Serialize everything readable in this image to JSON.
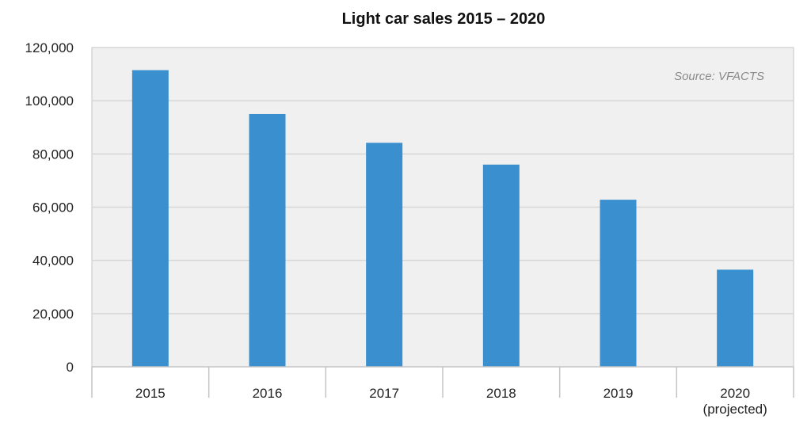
{
  "chart_data": {
    "type": "bar",
    "title": "Light car sales 2015 – 2020",
    "source": "Source: VFACTS",
    "categories": [
      {
        "label": "2015",
        "sub": ""
      },
      {
        "label": "2016",
        "sub": ""
      },
      {
        "label": "2017",
        "sub": ""
      },
      {
        "label": "2018",
        "sub": ""
      },
      {
        "label": "2019",
        "sub": ""
      },
      {
        "label": "2020",
        "sub": "(projected)"
      }
    ],
    "values": [
      111500,
      95000,
      84200,
      76000,
      62800,
      36500
    ],
    "ylim": [
      0,
      120000
    ],
    "yticks": [
      0,
      20000,
      40000,
      60000,
      80000,
      100000,
      120000
    ],
    "ytick_labels": [
      "0",
      "20,000",
      "40,000",
      "60,000",
      "80,000",
      "100,000",
      "120,000"
    ],
    "xlabel": "",
    "ylabel": "",
    "grid": true,
    "colors": {
      "bar": "#3a8fcf",
      "plot_background": "#f0f0f0",
      "gridline": "#d6d6d6",
      "axis": "#c4c4c4"
    }
  }
}
